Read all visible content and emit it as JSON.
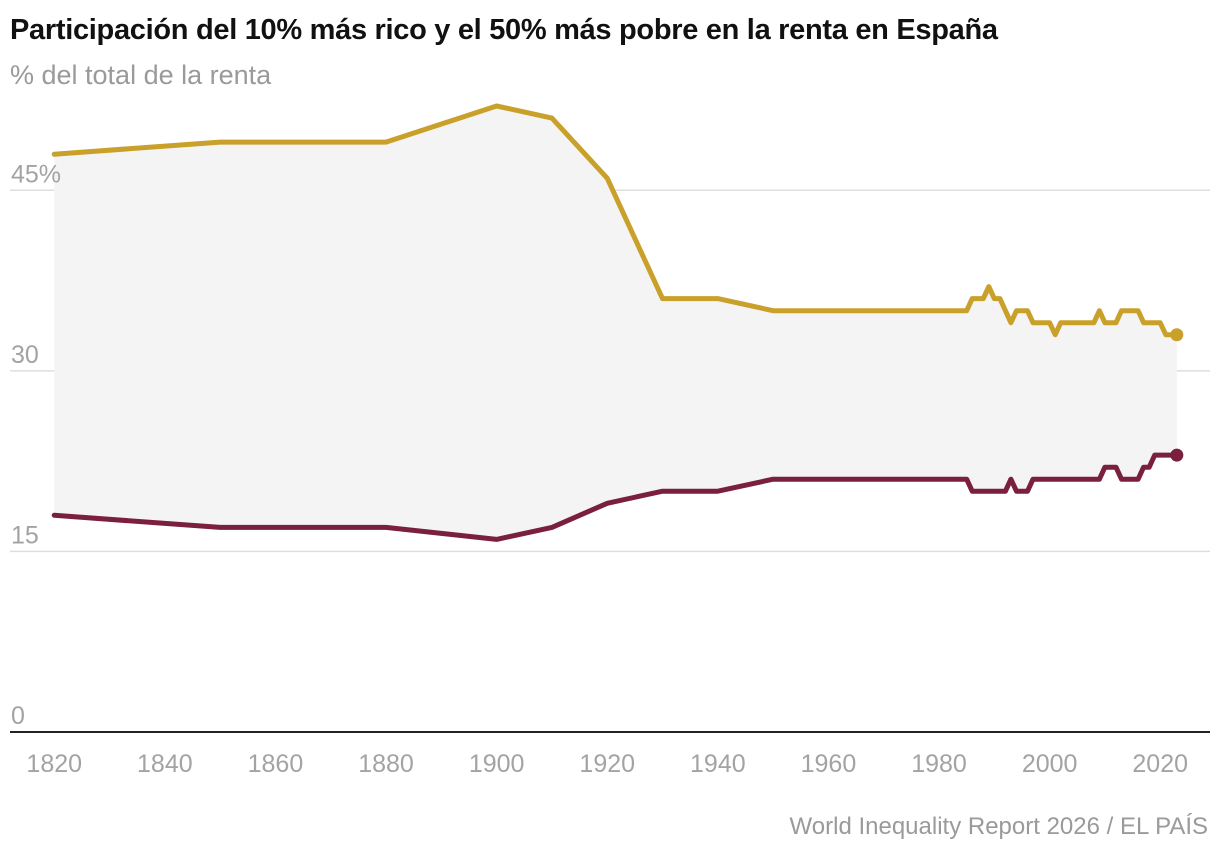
{
  "title": "Participación del 10% más rico y el 50% más pobre en la renta en España",
  "subtitle": "% del total de la renta",
  "source": "World Inequality Report 2026 / EL PAÍS",
  "colors": {
    "top10": "#c9a02a",
    "bottom50": "#7a1f3d",
    "band": "#f4f4f4",
    "grid": "#dedede",
    "axis": "#222222"
  },
  "chart_data": {
    "type": "line",
    "title": "Participación del 10% más rico y el 50% más pobre en la renta en España",
    "subtitle": "% del total de la renta",
    "xlabel": "",
    "ylabel": "% del total de la renta",
    "xlim": [
      1812,
      2029
    ],
    "ylim": [
      0,
      52.5
    ],
    "x_ticks": [
      1820,
      1840,
      1860,
      1880,
      1900,
      1920,
      1940,
      1960,
      1980,
      2000,
      2020
    ],
    "y_ticks": [
      {
        "value": 0,
        "label": "0"
      },
      {
        "value": 15,
        "label": "15"
      },
      {
        "value": 30,
        "label": "30"
      },
      {
        "value": 45,
        "label": "45%"
      }
    ],
    "grid": true,
    "legend": "none",
    "series": [
      {
        "name": "10% más rico",
        "x": [
          1820,
          1850,
          1880,
          1900,
          1910,
          1920,
          1930,
          1940,
          1950,
          1985,
          1986,
          1988,
          1989,
          1990,
          1991,
          1993,
          1994,
          1996,
          1997,
          2000,
          2001,
          2002,
          2008,
          2009,
          2010,
          2012,
          2013,
          2016,
          2017,
          2020,
          2021,
          2022,
          2023
        ],
        "values": [
          48.0,
          49.0,
          49.0,
          52.0,
          51.0,
          46.0,
          36.0,
          36.0,
          35.0,
          35.0,
          36.0,
          36.0,
          37.0,
          36.0,
          36.0,
          34.0,
          35.0,
          35.0,
          34.0,
          34.0,
          33.0,
          34.0,
          34.0,
          35.0,
          34.0,
          34.0,
          35.0,
          35.0,
          34.0,
          34.0,
          33.0,
          33.0,
          33.0
        ]
      },
      {
        "name": "50% más pobre",
        "x": [
          1820,
          1850,
          1880,
          1900,
          1910,
          1920,
          1930,
          1940,
          1950,
          1985,
          1986,
          1992,
          1993,
          1994,
          1996,
          1997,
          2009,
          2010,
          2012,
          2013,
          2016,
          2017,
          2018,
          2019,
          2023
        ],
        "values": [
          18.0,
          17.0,
          17.0,
          16.0,
          17.0,
          19.0,
          20.0,
          20.0,
          21.0,
          21.0,
          20.0,
          20.0,
          21.0,
          20.0,
          20.0,
          21.0,
          21.0,
          22.0,
          22.0,
          21.0,
          21.0,
          22.0,
          22.0,
          23.0,
          23.0
        ]
      }
    ]
  }
}
